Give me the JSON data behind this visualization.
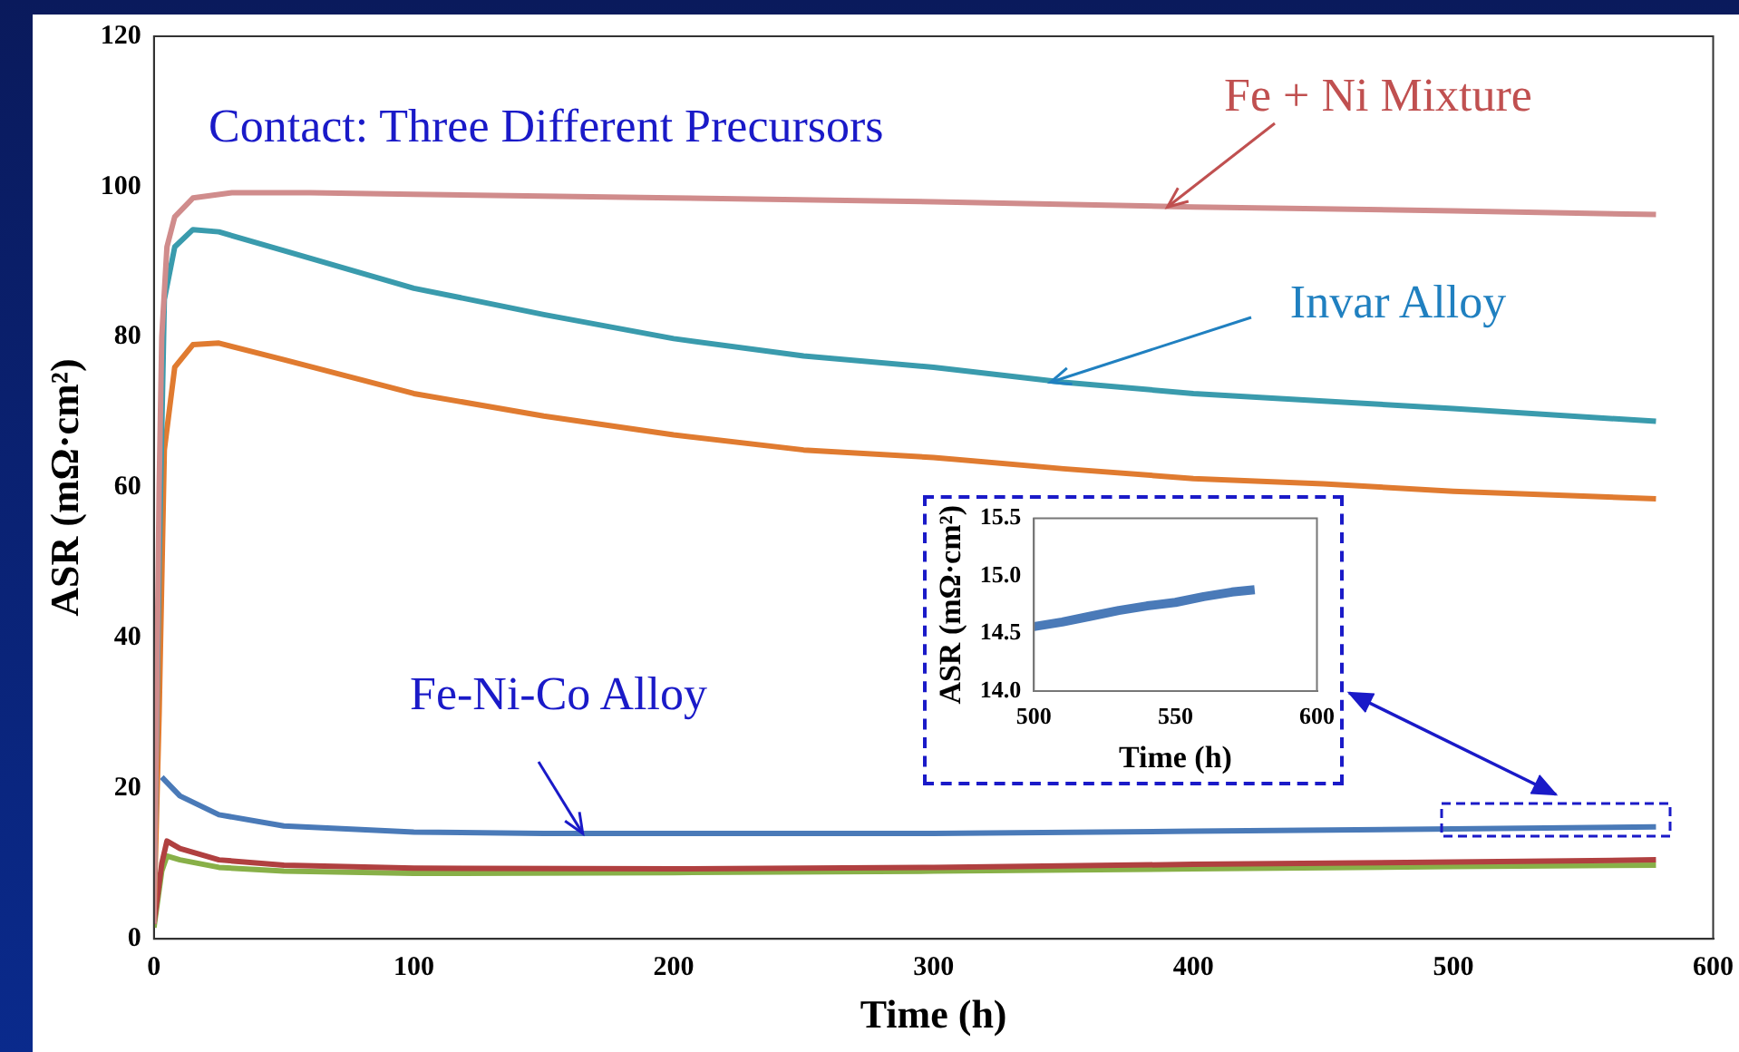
{
  "chart_data": [
    {
      "type": "line",
      "xlabel": "Time (h)",
      "ylabel": "ASR (mΩ·cm²)",
      "xlim": [
        0,
        600
      ],
      "xticks": [
        0,
        100,
        200,
        300,
        400,
        500,
        600
      ],
      "ylim": [
        0,
        120
      ],
      "yticks": [
        0,
        20,
        40,
        60,
        80,
        100,
        120
      ],
      "grid": false,
      "marker": "none",
      "annotations": [
        "Contact: Three Different Precursors",
        {
          "text": "Fe + Ni Mixture",
          "x": 390,
          "y": 97.3
        },
        {
          "text": "Invar Alloy",
          "x": 345,
          "y": 74
        },
        {
          "text": "Fe-Ni-Co Alloy",
          "x": 165,
          "y": 14
        }
      ],
      "series": [
        {
          "color": "#d08c8c",
          "x": [
            0,
            1,
            2,
            3,
            5,
            8,
            15,
            30,
            60,
            100,
            200,
            300,
            400,
            500,
            578
          ],
          "values": [
            2,
            30,
            60,
            80,
            92,
            96,
            98.5,
            99.2,
            99.2,
            99,
            98.5,
            98,
            97.3,
            96.8,
            96.3
          ]
        },
        {
          "color": "#3a9bad",
          "x": [
            0,
            2,
            4,
            8,
            15,
            25,
            50,
            100,
            150,
            200,
            250,
            300,
            350,
            400,
            450,
            500,
            578
          ],
          "values": [
            5,
            50,
            85,
            92,
            94.3,
            94,
            91.5,
            86.5,
            83,
            79.8,
            77.5,
            76,
            74,
            72.5,
            71.5,
            70.5,
            68.8
          ]
        },
        {
          "color": "#e07b30",
          "x": [
            0,
            2,
            4,
            8,
            15,
            25,
            50,
            100,
            150,
            200,
            250,
            300,
            350,
            400,
            450,
            500,
            578
          ],
          "values": [
            3,
            30,
            65,
            76,
            79,
            79.2,
            77,
            72.5,
            69.5,
            67,
            65,
            64,
            62.5,
            61.2,
            60.5,
            59.5,
            58.5
          ]
        },
        {
          "color": "#4a7ab8",
          "x": [
            3,
            10,
            25,
            50,
            100,
            150,
            200,
            300,
            400,
            500,
            578
          ],
          "values": [
            21.5,
            19,
            16.5,
            15,
            14.2,
            14,
            14,
            14,
            14.3,
            14.6,
            14.9
          ]
        },
        {
          "color": "#b04040",
          "x": [
            0,
            3,
            5,
            10,
            25,
            50,
            100,
            200,
            300,
            400,
            500,
            578
          ],
          "values": [
            2,
            10,
            13,
            12,
            10.5,
            9.8,
            9.4,
            9.3,
            9.5,
            9.9,
            10.2,
            10.5
          ]
        },
        {
          "color": "#88b048",
          "x": [
            0,
            3,
            5,
            10,
            25,
            50,
            100,
            200,
            300,
            400,
            500,
            578
          ],
          "values": [
            1.5,
            9,
            11,
            10.5,
            9.5,
            9,
            8.7,
            8.8,
            9,
            9.3,
            9.6,
            9.8
          ]
        }
      ]
    },
    {
      "type": "line",
      "xlabel": "Time (h)",
      "ylabel": "ASR (mΩ·cm²)",
      "xlim": [
        500,
        600
      ],
      "xticks": [
        500,
        550,
        600
      ],
      "ylim": [
        14,
        15.5
      ],
      "yticks": [
        {
          "value": 14,
          "label": "14.0"
        },
        {
          "value": 14.5,
          "label": "14.5"
        },
        {
          "value": 15,
          "label": "15.0"
        },
        {
          "value": 15.5,
          "label": "15.5"
        }
      ],
      "grid": false,
      "marker": "none",
      "series": [
        {
          "color": "#4a7ab8",
          "x": [
            500,
            510,
            520,
            530,
            540,
            550,
            560,
            570,
            578
          ],
          "values": [
            14.56,
            14.6,
            14.65,
            14.7,
            14.74,
            14.77,
            14.82,
            14.86,
            14.88
          ]
        }
      ]
    }
  ]
}
